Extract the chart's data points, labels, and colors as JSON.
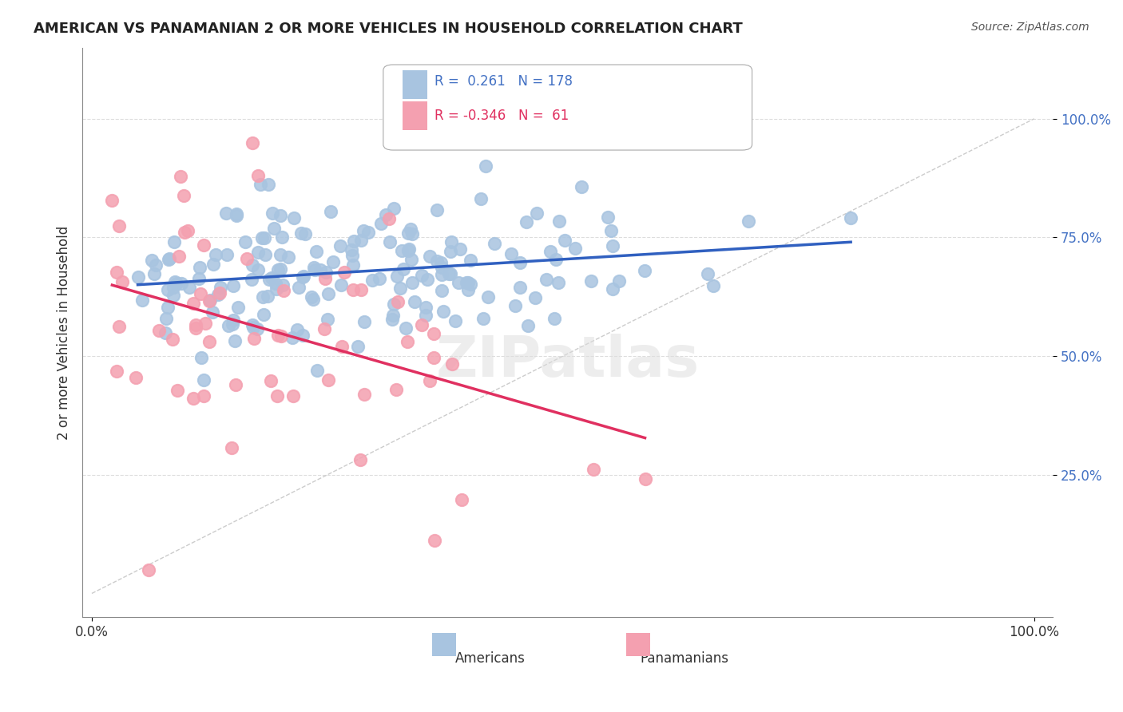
{
  "title": "AMERICAN VS PANAMANIAN 2 OR MORE VEHICLES IN HOUSEHOLD CORRELATION CHART",
  "source": "Source: ZipAtlas.com",
  "ylabel": "2 or more Vehicles in Household",
  "xlim": [
    0,
    1.0
  ],
  "ylim": [
    -0.05,
    1.15
  ],
  "xtick_labels": [
    "0.0%",
    "100.0%"
  ],
  "ytick_labels": [
    "25.0%",
    "50.0%",
    "75.0%",
    "100.0%"
  ],
  "ytick_values": [
    0.25,
    0.5,
    0.75,
    1.0
  ],
  "american_color": "#a8c4e0",
  "panamanian_color": "#f4a0b0",
  "american_line_color": "#3060c0",
  "panamanian_line_color": "#e03060",
  "r_american": 0.261,
  "n_american": 178,
  "r_panamanian": -0.346,
  "n_panamanian": 61,
  "legend_label_american": "Americans",
  "legend_label_panamanian": "Panamanians",
  "watermark": "ZIPatlas",
  "background_color": "#ffffff",
  "grid_color": "#dddddd"
}
